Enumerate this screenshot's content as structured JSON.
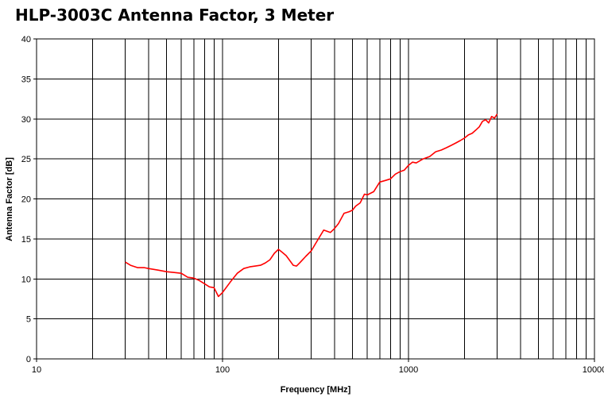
{
  "chart_data": {
    "type": "line",
    "title": "HLP-3003C Antenna Factor, 3 Meter",
    "xlabel": "Frequency [MHz]",
    "ylabel": "Antenna Factor [dB]",
    "xscale": "log",
    "xlim": [
      10,
      10000
    ],
    "ylim": [
      0,
      40
    ],
    "x_tick_labels": [
      "10",
      "100",
      "1000",
      "10000"
    ],
    "y_tick_labels": [
      "0",
      "5",
      "10",
      "15",
      "20",
      "25",
      "30",
      "35",
      "40"
    ],
    "grid": true,
    "series_color": "#ff0000",
    "series": [
      {
        "name": "Antenna Factor",
        "x": [
          30,
          32,
          35,
          38,
          40,
          45,
          50,
          55,
          60,
          65,
          70,
          75,
          80,
          85,
          90,
          95,
          100,
          110,
          120,
          130,
          140,
          150,
          160,
          170,
          180,
          190,
          200,
          210,
          220,
          230,
          240,
          250,
          260,
          280,
          300,
          320,
          350,
          380,
          400,
          420,
          450,
          480,
          500,
          520,
          550,
          580,
          600,
          650,
          700,
          750,
          800,
          850,
          900,
          950,
          1000,
          1050,
          1100,
          1200,
          1300,
          1400,
          1500,
          1600,
          1700,
          1800,
          1900,
          2000,
          2100,
          2200,
          2300,
          2400,
          2500,
          2600,
          2700,
          2800,
          2900,
          3000
        ],
        "values": [
          12.1,
          11.7,
          11.4,
          11.4,
          11.3,
          11.1,
          10.9,
          10.8,
          10.7,
          10.2,
          10.1,
          9.8,
          9.4,
          9.0,
          8.9,
          7.8,
          8.3,
          9.6,
          10.7,
          11.3,
          11.5,
          11.6,
          11.7,
          12.0,
          12.4,
          13.2,
          13.7,
          13.3,
          12.9,
          12.3,
          11.7,
          11.6,
          12.0,
          12.8,
          13.5,
          14.6,
          16.1,
          15.8,
          16.3,
          16.9,
          18.2,
          18.4,
          18.6,
          19.1,
          19.5,
          20.6,
          20.5,
          20.9,
          22.1,
          22.3,
          22.5,
          23.1,
          23.4,
          23.6,
          24.2,
          24.6,
          24.5,
          25.0,
          25.3,
          25.9,
          26.1,
          26.4,
          26.7,
          27.0,
          27.3,
          27.6,
          28.0,
          28.2,
          28.6,
          29.0,
          29.7,
          29.9,
          29.5,
          30.3,
          30.1,
          30.6
        ]
      }
    ]
  }
}
